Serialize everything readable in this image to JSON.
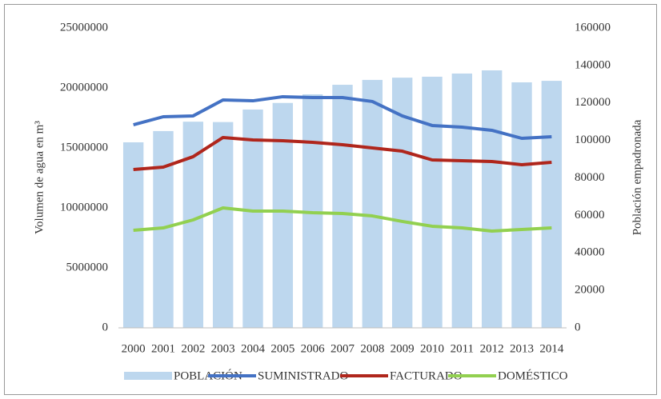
{
  "chart_data": {
    "type": "bar_line",
    "categories": [
      "2000",
      "2001",
      "2002",
      "2003",
      "2004",
      "2005",
      "2006",
      "2007",
      "2008",
      "2009",
      "2010",
      "2011",
      "2012",
      "2013",
      "2014"
    ],
    "ylabel": "Volumen de agua en m³",
    "y2label": "Población empadronada",
    "ylim": [
      0,
      25000000
    ],
    "yticks": [
      0,
      5000000,
      10000000,
      15000000,
      20000000,
      25000000
    ],
    "y2lim": [
      0,
      160000
    ],
    "y2ticks": [
      0,
      20000,
      40000,
      60000,
      80000,
      100000,
      120000,
      140000,
      160000
    ],
    "series": [
      {
        "name": "POBLACIÓN",
        "kind": "bar",
        "axis": "y2",
        "color": "#bdd7ee",
        "values": [
          99000,
          105000,
          110000,
          109800,
          116500,
          120000,
          124600,
          129700,
          132300,
          133500,
          134000,
          135700,
          137400,
          131000,
          131800
        ]
      },
      {
        "name": "SUMINISTRADO",
        "kind": "line",
        "color": "#4472c4",
        "values": [
          16930000,
          17600000,
          17670000,
          19000000,
          18930000,
          19270000,
          19200000,
          19200000,
          18870000,
          17670000,
          16870000,
          16730000,
          16470000,
          15800000,
          15930000
        ]
      },
      {
        "name": "FACTURADO",
        "kind": "line",
        "color": "#b0261c",
        "values": [
          13200000,
          13400000,
          14270000,
          15870000,
          15670000,
          15600000,
          15470000,
          15270000,
          15000000,
          14730000,
          14000000,
          13930000,
          13870000,
          13600000,
          13800000
        ]
      },
      {
        "name": "DOMÉSTICO",
        "kind": "line",
        "color": "#92d050",
        "values": [
          8130000,
          8330000,
          9000000,
          10000000,
          9730000,
          9730000,
          9600000,
          9530000,
          9330000,
          8870000,
          8470000,
          8330000,
          8070000,
          8200000,
          8330000
        ]
      }
    ],
    "legend": "bottom"
  }
}
